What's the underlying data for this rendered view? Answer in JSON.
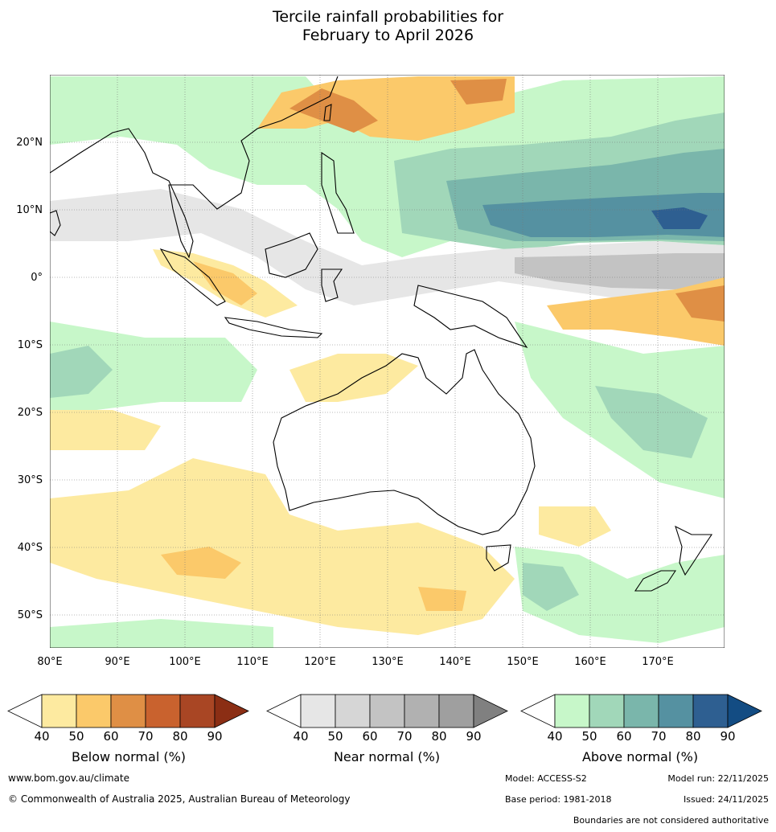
{
  "title": {
    "line1": "Tercile rainfall probabilities for",
    "line2": "February to April 2026"
  },
  "map": {
    "lon_labels": [
      "80°E",
      "90°E",
      "100°E",
      "110°E",
      "120°E",
      "130°E",
      "140°E",
      "150°E",
      "160°E",
      "170°E"
    ],
    "lat_labels": [
      "20°N",
      "10°N",
      "0°",
      "10°S",
      "20°S",
      "30°S",
      "40°S",
      "50°S"
    ]
  },
  "colorbars": {
    "below": {
      "label": "Below normal (%)",
      "ticks": [
        "40",
        "50",
        "60",
        "70",
        "80",
        "90"
      ],
      "colors": [
        "#ffffff",
        "#fdeaa0",
        "#fbc96a",
        "#df8f45",
        "#c9622e",
        "#a94624",
        "#8b2e14"
      ]
    },
    "near": {
      "label": "Near normal (%)",
      "ticks": [
        "40",
        "50",
        "60",
        "70",
        "80",
        "90"
      ],
      "colors": [
        "#ffffff",
        "#e6e6e6",
        "#d6d6d6",
        "#c3c3c3",
        "#b1b1b1",
        "#9f9f9f",
        "#808080"
      ]
    },
    "above": {
      "label": "Above normal (%)",
      "ticks": [
        "40",
        "50",
        "60",
        "70",
        "80",
        "90"
      ],
      "colors": [
        "#ffffff",
        "#c7f7c9",
        "#a1d7b9",
        "#7ab6ab",
        "#5591a1",
        "#2e5f91",
        "#134c83"
      ]
    }
  },
  "footer": {
    "website": "www.bom.gov.au/climate",
    "copyright": "© Commonwealth of Australia 2025, Australian Bureau of Meteorology",
    "model": "Model: ACCESS-S2",
    "model_run": "Model run: 22/11/2025",
    "base_period": "Base period: 1981-2018",
    "issued": "Issued: 24/11/2025",
    "disclaimer": "Boundaries are not considered authoritative"
  }
}
